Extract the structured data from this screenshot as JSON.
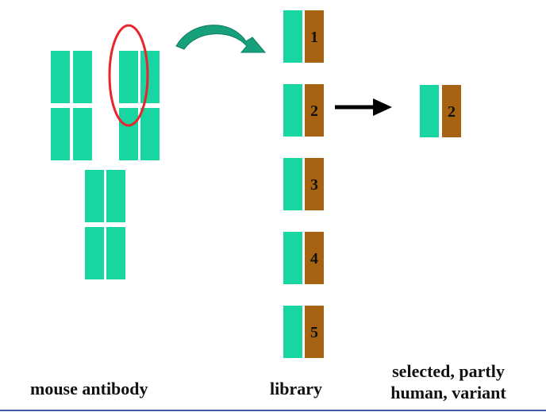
{
  "colors": {
    "human_segment": "#18d6a2",
    "mouse_segment": "#a86312",
    "highlight_ellipse": "#e8242c",
    "curved_arrow": "#16a07c",
    "straight_arrow": "#000000",
    "bottom_rule": "#4a57a8"
  },
  "captions": {
    "mouse_antibody": "mouse antibody",
    "library": "library",
    "selected_line1": "selected, partly",
    "selected_line2": "human, variant"
  },
  "library": {
    "items": [
      {
        "label": "1"
      },
      {
        "label": "2"
      },
      {
        "label": "3"
      },
      {
        "label": "4"
      },
      {
        "label": "5"
      }
    ]
  },
  "selected": {
    "label": "2"
  },
  "icons": {
    "curved_arrow": "curved-arrow-icon",
    "straight_arrow": "right-arrow-icon",
    "highlight": "ellipse-highlight"
  }
}
